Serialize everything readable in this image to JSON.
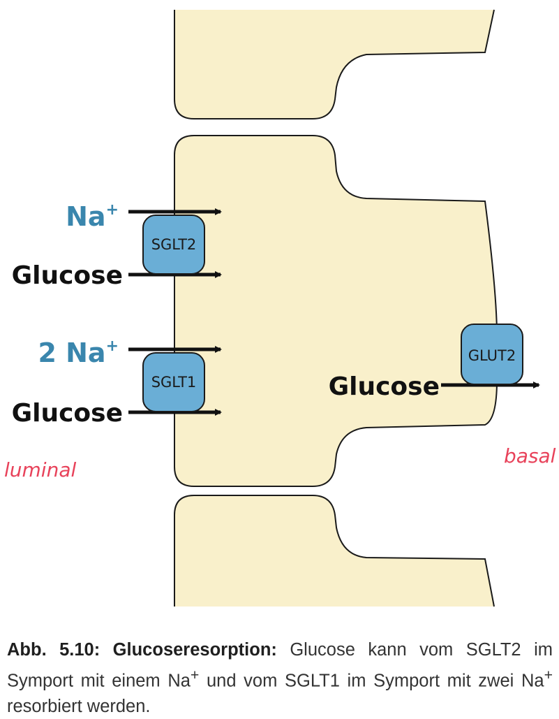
{
  "diagram": {
    "ions": {
      "na_top": "Na",
      "na_top_sup": "+",
      "na_bottom": "2 Na",
      "na_bottom_sup": "+"
    },
    "substrate": {
      "glucose_left_top": "Glucose",
      "glucose_left_bottom": "Glucose",
      "glucose_right": "Glucose"
    },
    "transporters": {
      "sglt2": "SGLT2",
      "sglt1": "SGLT1",
      "glut2": "GLUT2"
    },
    "annotations": {
      "luminal": "luminal",
      "basal": "basal"
    },
    "colors": {
      "cell_fill": "#f9f0cb",
      "transporter_fill": "#6aaed6",
      "ion_text": "#3a86ad",
      "annotation": "#e8425a"
    }
  },
  "caption": {
    "title": "Abb. 5.10: Glucoseresorption:",
    "body_1": " Glucose kann vom SGLT2 im Symport mit einem Na",
    "sup_1": "+",
    "body_2": " und vom SGLT1 im Symport mit zwei Na",
    "sup_2": "+",
    "body_3": " resorbiert werden."
  }
}
